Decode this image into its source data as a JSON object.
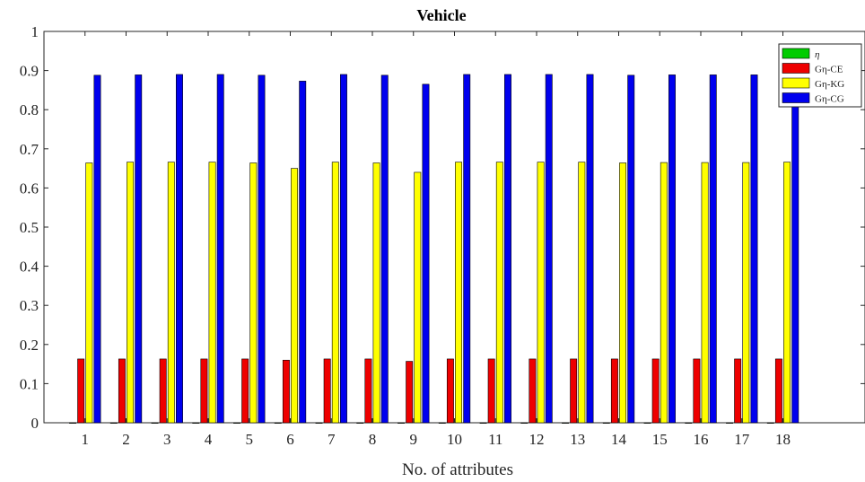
{
  "chart_data": {
    "type": "bar",
    "title": "Vehicle",
    "xlabel": "No. of attributes",
    "ylabel": "",
    "ylim": [
      0,
      1
    ],
    "xlim": [
      0,
      20
    ],
    "yticks": [
      "0",
      "0.1",
      "0.2",
      "0.3",
      "0.4",
      "0.5",
      "0.6",
      "0.7",
      "0.8",
      "0.9",
      "1"
    ],
    "categories": [
      "1",
      "2",
      "3",
      "4",
      "5",
      "6",
      "7",
      "8",
      "9",
      "10",
      "11",
      "12",
      "13",
      "14",
      "15",
      "16",
      "17",
      "18"
    ],
    "legend_position": "top-right",
    "grid": false,
    "series": [
      {
        "name": "η",
        "color": "#00cc00",
        "values": [
          0,
          0,
          0,
          0,
          0,
          0,
          0,
          0,
          0,
          0,
          0,
          0,
          0,
          0,
          0,
          0,
          0,
          0
        ]
      },
      {
        "name": "Gη-CE",
        "color": "#ee0000",
        "values": [
          0.163,
          0.163,
          0.163,
          0.163,
          0.163,
          0.16,
          0.163,
          0.163,
          0.157,
          0.163,
          0.163,
          0.163,
          0.163,
          0.163,
          0.163,
          0.163,
          0.163,
          0.163
        ]
      },
      {
        "name": "Gη-KG",
        "color": "#ffff00",
        "values": [
          0.664,
          0.666,
          0.666,
          0.666,
          0.664,
          0.65,
          0.666,
          0.664,
          0.64,
          0.666,
          0.666,
          0.666,
          0.666,
          0.664,
          0.665,
          0.665,
          0.665,
          0.666
        ]
      },
      {
        "name": "Gη-CG",
        "color": "#0000ee",
        "values": [
          0.888,
          0.889,
          0.89,
          0.89,
          0.888,
          0.873,
          0.89,
          0.888,
          0.865,
          0.89,
          0.89,
          0.89,
          0.89,
          0.888,
          0.889,
          0.889,
          0.889,
          0.889
        ]
      }
    ]
  }
}
